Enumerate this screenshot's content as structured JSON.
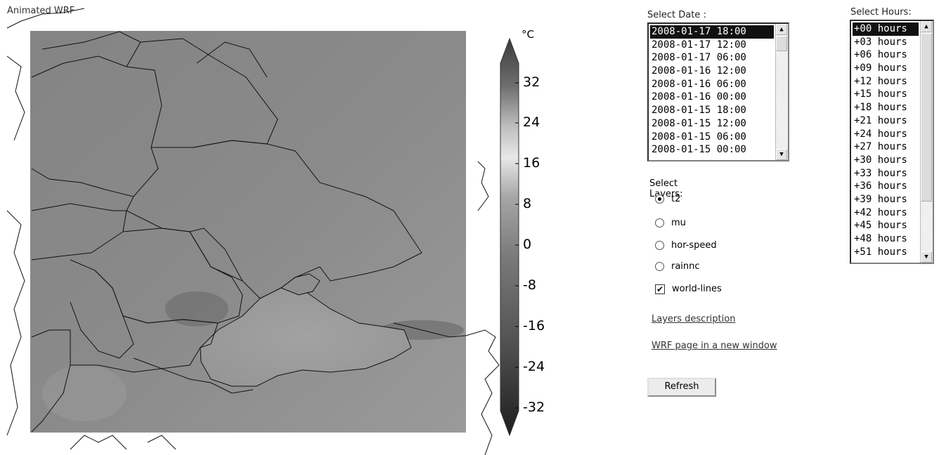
{
  "title": "Animated WRF",
  "colorbar": {
    "unit": "°C",
    "ticks": [
      "32",
      "24",
      "16",
      "8",
      "0",
      "-8",
      "-16",
      "-24",
      "-32"
    ]
  },
  "date_select": {
    "label": "Select Date :",
    "options": [
      "2008-01-17 18:00",
      "2008-01-17 12:00",
      "2008-01-17 06:00",
      "2008-01-16 12:00",
      "2008-01-16 06:00",
      "2008-01-16 00:00",
      "2008-01-15 18:00",
      "2008-01-15 12:00",
      "2008-01-15 06:00",
      "2008-01-15 00:00"
    ],
    "selected": "2008-01-17 18:00"
  },
  "hours_select": {
    "label": "Select Hours:",
    "options": [
      "+00 hours",
      "+03 hours",
      "+06 hours",
      "+09 hours",
      "+12 hours",
      "+15 hours",
      "+18 hours",
      "+21 hours",
      "+24 hours",
      "+27 hours",
      "+30 hours",
      "+33 hours",
      "+36 hours",
      "+39 hours",
      "+42 hours",
      "+45 hours",
      "+48 hours",
      "+51 hours"
    ],
    "selected": "+00 hours"
  },
  "layers": {
    "label": "Select Layers:",
    "radios": [
      {
        "label": "t2",
        "checked": true
      },
      {
        "label": "mu",
        "checked": false
      },
      {
        "label": "hor-speed",
        "checked": false
      },
      {
        "label": "rainnc",
        "checked": false
      }
    ],
    "checkbox": {
      "label": "world-lines",
      "checked": true
    }
  },
  "links": {
    "description": "Layers description",
    "wrf_page": "WRF page in a new window"
  },
  "refresh_label": "Refresh"
}
